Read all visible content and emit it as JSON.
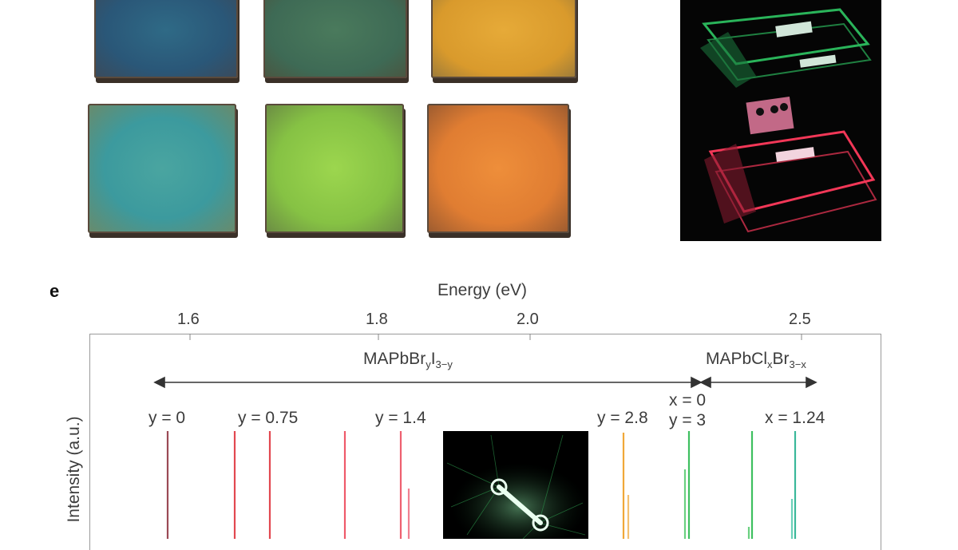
{
  "panel": {
    "letter": "e",
    "top_axis_title": "Energy (eV)",
    "top_axis_ticks": [
      "1.6",
      "1.8",
      "2.0",
      "2.5"
    ],
    "y_axis_title": "Intensity (a.u.)",
    "series_groups": {
      "left_formula": "MAPbBr",
      "left_formula_sub1": "y",
      "left_formula_mid": "I",
      "left_formula_sub2": "3−y",
      "right_formula": "MAPbCl",
      "right_formula_sub1": "x",
      "right_formula_mid": "Br",
      "right_formula_sub2": "3−x"
    },
    "peak_labels": {
      "y0": "y = 0",
      "y075": "y = 0.75",
      "y14": "y = 1.4",
      "y28": "y = 2.8",
      "x0": "x = 0",
      "y3": "y = 3",
      "x124": "x = 1.24"
    }
  },
  "colors": {
    "sample_blue": "#2f6a86",
    "sample_green_dark": "#4a7a5c",
    "sample_amber": "#e0a030",
    "sample_cyan": "#4aa5a0",
    "sample_lime": "#8dc84a",
    "sample_orange": "#e88a38",
    "laser_green": "#39d46a",
    "laser_red": "#ff3a5c",
    "peak_maroon": "#9b4a55",
    "peak_red": "#e24850",
    "peak_pink": "#ee6070",
    "peak_orange": "#f0a838",
    "peak_green": "#3ec060",
    "peak_teal": "#3ab89a"
  }
}
